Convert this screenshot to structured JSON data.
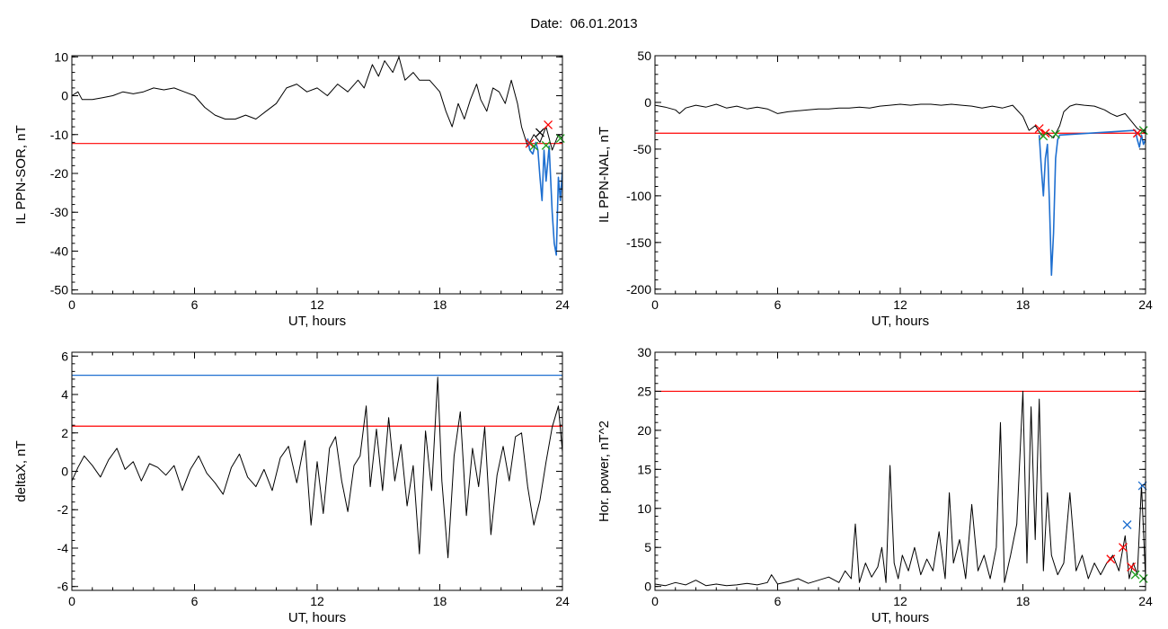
{
  "page": {
    "date_label": "Date:",
    "date_value": "06.01.2013"
  },
  "colors": {
    "axis": "#000000",
    "signal": "#000000",
    "threshold_red": "#ff0000",
    "threshold_blue": "#1e6fd0",
    "highlight_blue": "#1e6fd0",
    "marker_red": "#ff0000",
    "marker_green": "#1ea01e",
    "marker_blue": "#1e6fd0"
  },
  "chart_data": [
    {
      "type": "line",
      "xlabel": "UT, hours",
      "ylabel": "IL PPN-SOR, nT",
      "xlim": [
        0,
        24
      ],
      "ylim": [
        -51,
        10.3
      ],
      "xticks": [
        0,
        6,
        12,
        18,
        24
      ],
      "yticks": [
        10,
        0,
        -10,
        -20,
        -30,
        -40,
        -50
      ],
      "thresholds": [
        {
          "value": -12.3,
          "color": "red"
        }
      ],
      "series": [
        {
          "color": "black",
          "x": [
            0,
            0.3,
            0.5,
            1,
            1.5,
            2,
            2.5,
            3,
            3.5,
            4,
            4.5,
            5,
            5.5,
            6,
            6.5,
            7,
            7.5,
            8,
            8.5,
            9,
            9.5,
            10,
            10.5,
            11,
            11.5,
            12,
            12.5,
            13,
            13.5,
            14,
            14.3,
            14.7,
            15,
            15.3,
            15.7,
            16,
            16.3,
            16.7,
            17,
            17.5,
            18,
            18.3,
            18.6,
            18.9,
            19.2,
            19.5,
            19.8,
            20,
            20.3,
            20.6,
            20.9,
            21.2,
            21.5,
            21.8,
            22,
            22.3,
            22.6,
            22.9,
            23.2,
            23.5,
            23.8,
            24
          ],
          "y": [
            0,
            1,
            -1,
            -1,
            -0.5,
            0,
            1,
            0.5,
            1,
            2,
            1.5,
            2,
            1,
            0,
            -3,
            -5,
            -6,
            -6,
            -5,
            -6,
            -4,
            -2,
            2,
            3,
            1,
            2,
            0,
            3,
            1,
            4,
            2,
            8,
            5,
            9,
            6,
            10,
            4,
            6,
            4,
            4,
            1,
            -4,
            -8,
            -2,
            -6,
            -1,
            3,
            -1,
            -4,
            2,
            1,
            -2,
            4,
            -2,
            -8,
            -13,
            -10,
            -12,
            -8,
            -14,
            -10,
            -11
          ]
        },
        {
          "color": "blue",
          "x": [
            22.3,
            22.4,
            22.55,
            22.7,
            22.8,
            22.9,
            23.0,
            23.1,
            23.2,
            23.35,
            23.5,
            23.6,
            23.7,
            23.8,
            23.9,
            24
          ],
          "y": [
            -11,
            -14,
            -15,
            -12,
            -14,
            -21,
            -27,
            -14,
            -22,
            -13,
            -30,
            -38,
            -41,
            -21,
            -27,
            -19
          ]
        }
      ],
      "markers": [
        {
          "x": 22.4,
          "y": -12.3,
          "color": "red"
        },
        {
          "x": 22.9,
          "y": -9.5,
          "color": "black"
        },
        {
          "x": 23.3,
          "y": -7.5,
          "color": "red"
        },
        {
          "x": 22.6,
          "y": -13.0,
          "color": "green"
        },
        {
          "x": 23.2,
          "y": -12.8,
          "color": "green"
        },
        {
          "x": 23.9,
          "y": -11.0,
          "color": "green"
        }
      ]
    },
    {
      "type": "line",
      "xlabel": "UT, hours",
      "ylabel": "IL PPN-NAL, nT",
      "xlim": [
        0,
        24
      ],
      "ylim": [
        -205,
        50
      ],
      "xticks": [
        0,
        6,
        12,
        18,
        24
      ],
      "yticks": [
        50,
        0,
        -50,
        -100,
        -150,
        -200
      ],
      "thresholds": [
        {
          "value": -33,
          "color": "red"
        }
      ],
      "series": [
        {
          "color": "black",
          "x": [
            0,
            0.5,
            1,
            1.2,
            1.5,
            2,
            2.5,
            3,
            3.5,
            4,
            4.5,
            5,
            5.5,
            6,
            6.5,
            7,
            7.5,
            8,
            8.5,
            9,
            9.5,
            10,
            10.5,
            11,
            11.5,
            12,
            12.5,
            13,
            13.5,
            14,
            14.5,
            15,
            15.5,
            16,
            16.5,
            17,
            17.5,
            18,
            18.3,
            18.6,
            18.9,
            19.2,
            19.5,
            19.8,
            20,
            20.3,
            20.6,
            21,
            21.5,
            22,
            22.3,
            22.6,
            23,
            23.3,
            23.6,
            24
          ],
          "y": [
            -3,
            -5,
            -8,
            -12,
            -6,
            -3,
            -5,
            -2,
            -6,
            -4,
            -7,
            -5,
            -7,
            -12,
            -10,
            -9,
            -8,
            -7,
            -7,
            -6,
            -6,
            -5,
            -6,
            -4,
            -3,
            -2,
            -3,
            -2,
            -2,
            -3,
            -2,
            -3,
            -4,
            -6,
            -4,
            -6,
            -3,
            -15,
            -30,
            -25,
            -35,
            -33,
            -38,
            -25,
            -10,
            -4,
            -2,
            -3,
            -4,
            -8,
            -12,
            -15,
            -12,
            -20,
            -28,
            -33
          ]
        },
        {
          "color": "blue",
          "x": [
            18.8,
            18.9,
            19.0,
            19.1,
            19.2,
            19.3,
            19.4,
            19.5,
            19.6,
            19.7,
            19.8,
            23.5,
            23.6,
            23.7,
            23.8,
            23.9,
            24
          ],
          "y": [
            -35,
            -70,
            -100,
            -60,
            -45,
            -110,
            -185,
            -140,
            -60,
            -40,
            -35,
            -30,
            -40,
            -48,
            -35,
            -45,
            -40
          ]
        }
      ],
      "markers": [
        {
          "x": 18.8,
          "y": -28,
          "color": "red"
        },
        {
          "x": 19.1,
          "y": -33,
          "color": "red"
        },
        {
          "x": 23.6,
          "y": -33,
          "color": "red"
        },
        {
          "x": 19.0,
          "y": -36,
          "color": "green"
        },
        {
          "x": 19.6,
          "y": -34,
          "color": "green"
        },
        {
          "x": 23.9,
          "y": -30,
          "color": "green"
        }
      ]
    },
    {
      "type": "line",
      "xlabel": "UT, hours",
      "ylabel": "deltaX, nT",
      "xlim": [
        0,
        24
      ],
      "ylim": [
        -6.2,
        6.2
      ],
      "xticks": [
        0,
        6,
        12,
        18,
        24
      ],
      "yticks": [
        6,
        4,
        2,
        0,
        -2,
        -4,
        -6
      ],
      "thresholds": [
        {
          "value": 5.0,
          "color": "blue"
        },
        {
          "value": 2.35,
          "color": "red"
        }
      ],
      "series": [
        {
          "color": "black",
          "x": [
            0,
            0.3,
            0.6,
            1,
            1.4,
            1.8,
            2.2,
            2.6,
            3,
            3.4,
            3.8,
            4.2,
            4.6,
            5,
            5.4,
            5.8,
            6.2,
            6.6,
            7,
            7.4,
            7.8,
            8.2,
            8.6,
            9,
            9.4,
            9.8,
            10.2,
            10.6,
            11,
            11.4,
            11.7,
            12,
            12.3,
            12.6,
            12.9,
            13.2,
            13.5,
            13.8,
            14.1,
            14.4,
            14.6,
            14.9,
            15.2,
            15.5,
            15.8,
            16.1,
            16.4,
            16.7,
            17,
            17.3,
            17.6,
            17.9,
            18.1,
            18.4,
            18.7,
            19,
            19.3,
            19.6,
            19.9,
            20.2,
            20.5,
            20.8,
            21.1,
            21.4,
            21.7,
            22,
            22.3,
            22.6,
            22.9,
            23.2,
            23.5,
            23.8,
            24
          ],
          "y": [
            -0.5,
            0.2,
            0.8,
            0.3,
            -0.3,
            0.6,
            1.2,
            0.1,
            0.5,
            -0.5,
            0.4,
            0.2,
            -0.2,
            0.3,
            -1.0,
            0.1,
            0.8,
            -0.1,
            -0.6,
            -1.2,
            0.2,
            0.9,
            -0.3,
            -0.8,
            0.1,
            -1.0,
            0.7,
            1.3,
            -0.6,
            1.6,
            -2.8,
            0.5,
            -2.2,
            1.2,
            1.8,
            -0.5,
            -2.1,
            0.3,
            0.8,
            3.4,
            -0.8,
            2.2,
            -1.0,
            2.8,
            -0.5,
            1.4,
            -1.8,
            0.3,
            -4.3,
            2.1,
            -1.0,
            4.9,
            -0.5,
            -4.5,
            0.8,
            3.1,
            -2.3,
            1.2,
            -0.8,
            2.3,
            -3.3,
            -0.2,
            1.3,
            -0.5,
            1.8,
            2.0,
            -0.8,
            -2.8,
            -1.5,
            0.5,
            2.3,
            3.4,
            1.0
          ]
        }
      ],
      "markers": []
    },
    {
      "type": "line",
      "xlabel": "UT, hours",
      "ylabel": "Hor. power, nT^2",
      "xlim": [
        0,
        24
      ],
      "ylim": [
        -0.5,
        30
      ],
      "xticks": [
        0,
        6,
        12,
        18,
        24
      ],
      "yticks": [
        30,
        25,
        20,
        15,
        10,
        5,
        0
      ],
      "thresholds": [
        {
          "value": 25,
          "color": "red"
        }
      ],
      "series": [
        {
          "color": "black",
          "x": [
            0,
            0.5,
            1,
            1.5,
            2,
            2.5,
            3,
            3.5,
            4,
            4.5,
            5,
            5.5,
            5.7,
            6,
            6.5,
            7,
            7.5,
            8,
            8.5,
            9,
            9.3,
            9.6,
            9.8,
            10,
            10.3,
            10.6,
            10.9,
            11.1,
            11.3,
            11.5,
            11.7,
            11.9,
            12.1,
            12.4,
            12.7,
            13,
            13.3,
            13.6,
            13.9,
            14.2,
            14.4,
            14.6,
            14.9,
            15.2,
            15.5,
            15.8,
            16.1,
            16.4,
            16.7,
            16.9,
            17.1,
            17.4,
            17.7,
            18,
            18.2,
            18.4,
            18.6,
            18.8,
            19,
            19.2,
            19.4,
            19.7,
            20,
            20.3,
            20.6,
            20.9,
            21.2,
            21.5,
            21.8,
            22.1,
            22.4,
            22.7,
            23,
            23.2,
            23.4,
            23.6,
            23.8,
            24
          ],
          "y": [
            0.3,
            0.1,
            0.5,
            0.2,
            0.8,
            0.1,
            0.3,
            0.1,
            0.2,
            0.4,
            0.2,
            0.5,
            1.5,
            0.3,
            0.6,
            1.0,
            0.4,
            0.8,
            1.2,
            0.5,
            2.0,
            1.0,
            8.0,
            0.5,
            3.0,
            1.2,
            2.5,
            5.0,
            0.5,
            15.5,
            3.0,
            1.0,
            4.0,
            2.0,
            5.0,
            1.5,
            3.5,
            2.0,
            7.0,
            1.0,
            12.0,
            3.0,
            6.0,
            1.0,
            10.5,
            2.0,
            4.0,
            1.0,
            5.0,
            21.0,
            0.5,
            4.0,
            8.0,
            25.0,
            3.0,
            23.0,
            6.0,
            24.0,
            2.0,
            12.0,
            4.0,
            1.5,
            3.0,
            12.0,
            2.0,
            4.0,
            1.0,
            3.0,
            1.5,
            3.0,
            4.0,
            2.0,
            6.5,
            1.0,
            3.0,
            1.5,
            13.0,
            1.0
          ]
        }
      ],
      "markers": [
        {
          "x": 22.3,
          "y": 3.5,
          "color": "red"
        },
        {
          "x": 22.9,
          "y": 5.0,
          "color": "red"
        },
        {
          "x": 23.1,
          "y": 7.9,
          "color": "blue"
        },
        {
          "x": 23.3,
          "y": 2.5,
          "color": "red"
        },
        {
          "x": 23.5,
          "y": 1.5,
          "color": "green"
        },
        {
          "x": 23.85,
          "y": 12.9,
          "color": "blue"
        },
        {
          "x": 23.9,
          "y": 1.0,
          "color": "green"
        }
      ]
    }
  ]
}
